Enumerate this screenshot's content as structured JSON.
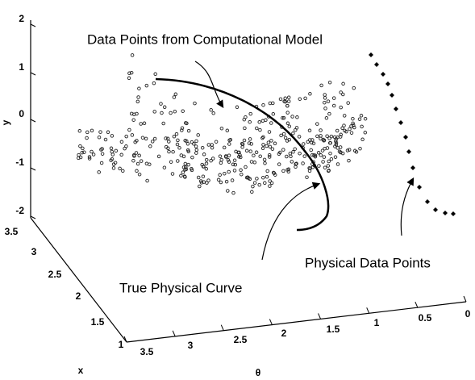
{
  "axes": {
    "y": {
      "title": "y",
      "ticks": [
        "2",
        "1",
        "0",
        "-1",
        "-2"
      ]
    },
    "x": {
      "title": "x",
      "ticks": [
        "3.5",
        "3",
        "2.5",
        "2",
        "1.5",
        "1"
      ]
    },
    "theta": {
      "title": "θ",
      "ticks": [
        "3.5",
        "3",
        "2.5",
        "2",
        "1.5",
        "1",
        "0.5",
        "0"
      ]
    }
  },
  "annotations": [
    "Data Points from Computational Model",
    "Physical Data Points",
    "True Physical Curve"
  ]
}
